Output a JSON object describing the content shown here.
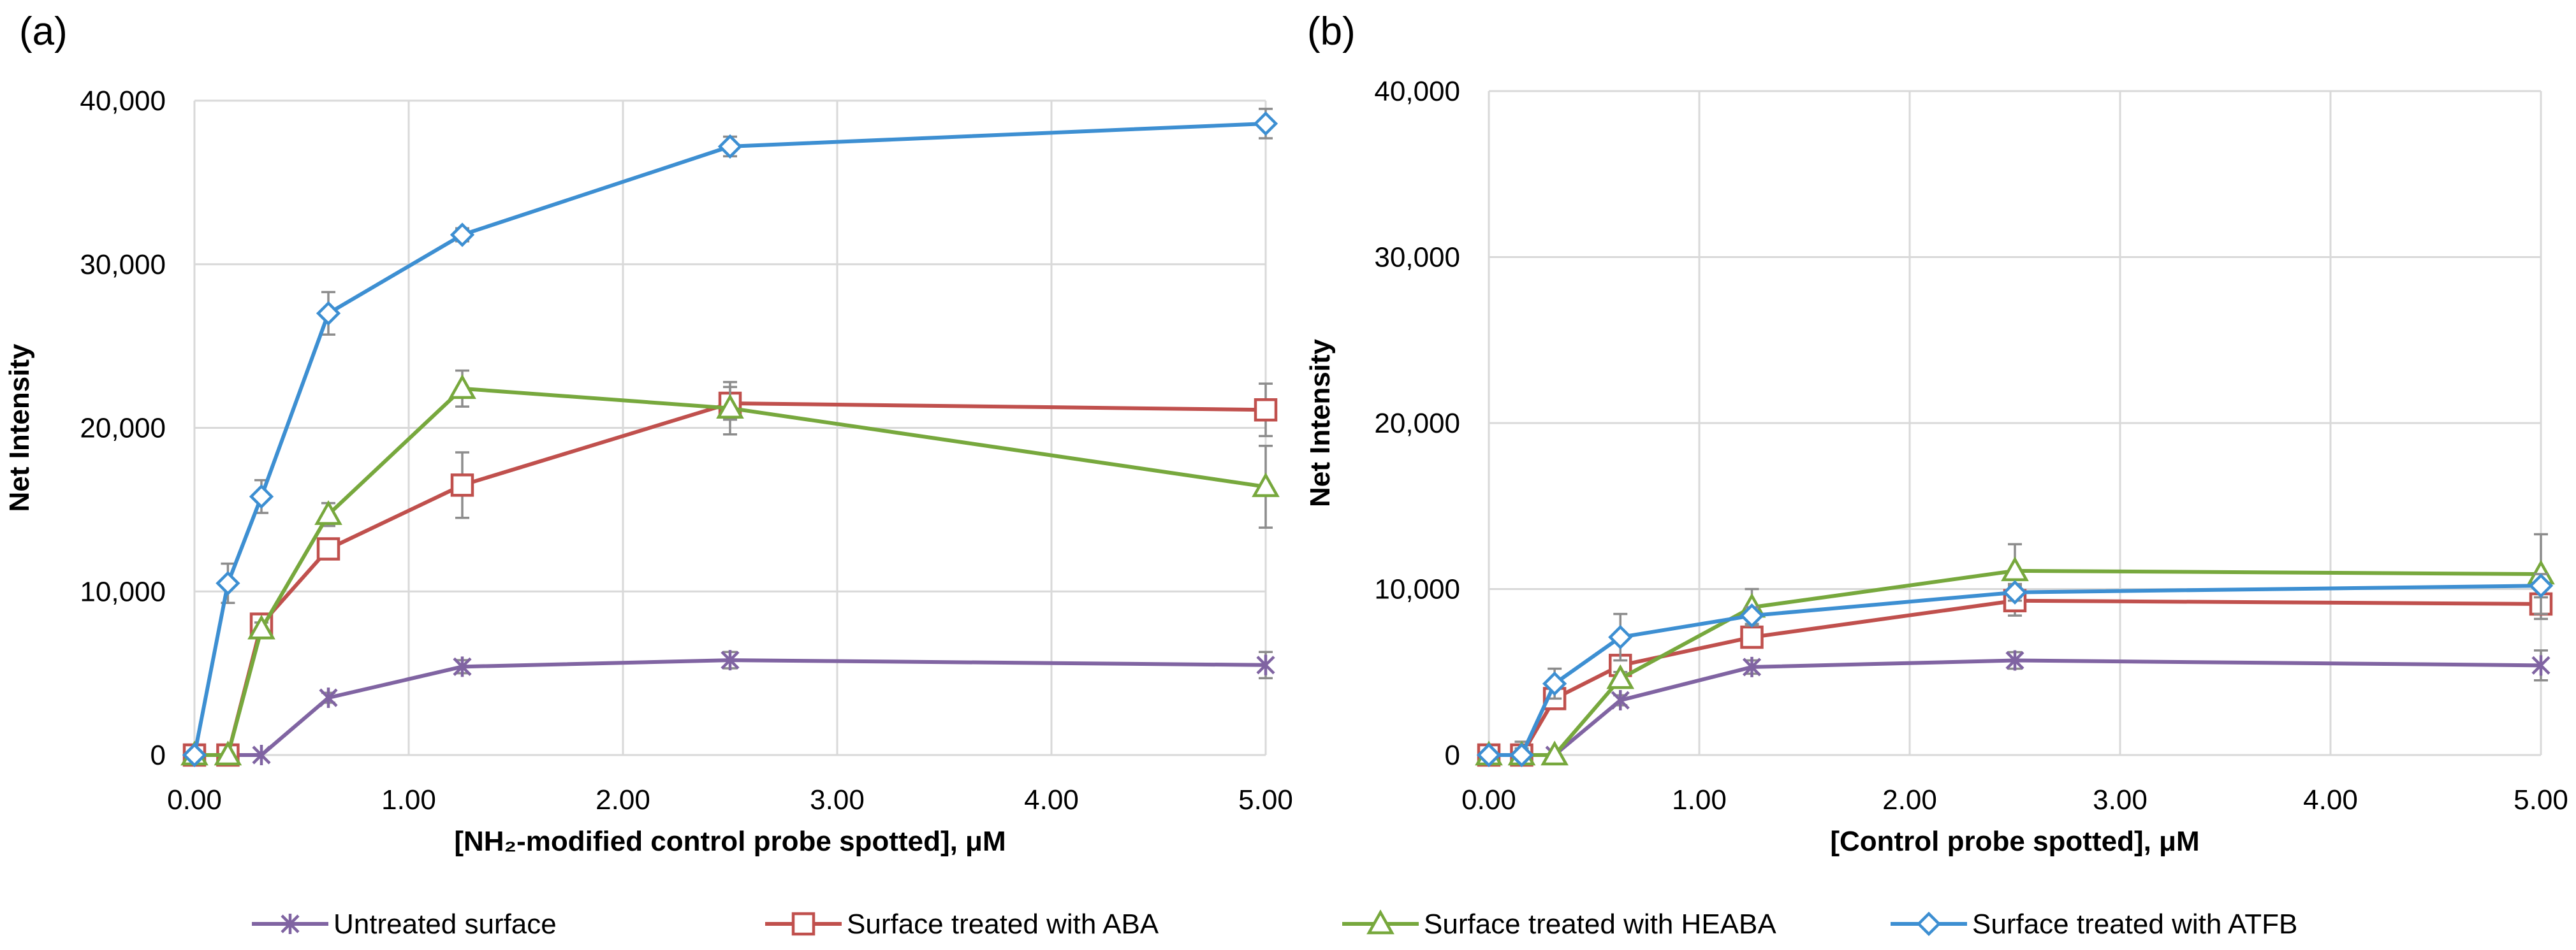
{
  "chart_data": [
    {
      "type": "line",
      "panel_label": "(a)",
      "xlabel": "[NH₂-modified control probe spotted], μM",
      "ylabel": "Net Intensity",
      "x_ticks": [
        "0.00",
        "1.00",
        "2.00",
        "3.00",
        "4.00",
        "5.00"
      ],
      "y_ticks": [
        "0",
        "10,000",
        "20,000",
        "30,000",
        "40,000"
      ],
      "xlim": [
        0,
        5
      ],
      "ylim": [
        0,
        40000
      ],
      "grid": true,
      "x": [
        0,
        0.156,
        0.3125,
        0.625,
        1.25,
        2.5,
        5.0
      ],
      "series": [
        {
          "name": "Untreated surface",
          "values": [
            0,
            0,
            0,
            3500,
            5400,
            5800,
            5500
          ],
          "errors": [
            0,
            0,
            0,
            300,
            400,
            500,
            800
          ]
        },
        {
          "name": "Surface treated with ABA",
          "values": [
            0,
            0,
            8000,
            12600,
            16500,
            21500,
            21100
          ],
          "errors": [
            0,
            0,
            400,
            500,
            2000,
            1000,
            1600
          ]
        },
        {
          "name": "Surface treated with HEABA",
          "values": [
            0,
            0,
            7700,
            14700,
            22400,
            21200,
            16400
          ],
          "errors": [
            0,
            0,
            400,
            700,
            1100,
            1600,
            2500
          ]
        },
        {
          "name": "Surface treated with ATFB",
          "values": [
            0,
            10500,
            15800,
            27000,
            31800,
            37200,
            38600
          ],
          "errors": [
            0,
            1200,
            1000,
            1300,
            400,
            600,
            900
          ]
        }
      ]
    },
    {
      "type": "line",
      "panel_label": "(b)",
      "xlabel": "[Control probe spotted], μM",
      "ylabel": "Net Intensity",
      "x_ticks": [
        "0.00",
        "1.00",
        "2.00",
        "3.00",
        "4.00",
        "5.00"
      ],
      "y_ticks": [
        "0",
        "10,000",
        "20,000",
        "30,000",
        "40,000"
      ],
      "xlim": [
        0,
        5
      ],
      "ylim": [
        0,
        40000
      ],
      "grid": true,
      "x": [
        0,
        0.156,
        0.3125,
        0.625,
        1.25,
        2.5,
        5.0
      ],
      "series": [
        {
          "name": "Untreated surface",
          "values": [
            0,
            0,
            0,
            3300,
            5300,
            5700,
            5400
          ],
          "errors": [
            0,
            0,
            0,
            300,
            400,
            500,
            900
          ]
        },
        {
          "name": "Surface treated with ABA",
          "values": [
            0,
            0,
            3400,
            5400,
            7100,
            9300,
            9100
          ],
          "errors": [
            0,
            800,
            600,
            500,
            600,
            900,
            900
          ]
        },
        {
          "name": "Surface treated with HEABA",
          "values": [
            0,
            0,
            0,
            4600,
            8900,
            11100,
            10900
          ],
          "errors": [
            0,
            0,
            0,
            400,
            1100,
            1600,
            2400
          ]
        },
        {
          "name": "Surface treated with ATFB",
          "values": [
            0,
            0,
            4300,
            7100,
            8400,
            9800,
            10200
          ],
          "errors": [
            0,
            400,
            900,
            1400,
            500,
            500,
            700
          ]
        }
      ]
    }
  ],
  "legend": [
    {
      "label": "Untreated surface",
      "color": "#8064a2",
      "marker": "x-cross"
    },
    {
      "label": "Surface treated with ABA",
      "color": "#c0504d",
      "marker": "square"
    },
    {
      "label": "Surface treated with HEABA",
      "color": "#77a83d",
      "marker": "triangle"
    },
    {
      "label": "Surface treated with ATFB",
      "color": "#3d8fd2",
      "marker": "diamond"
    }
  ]
}
